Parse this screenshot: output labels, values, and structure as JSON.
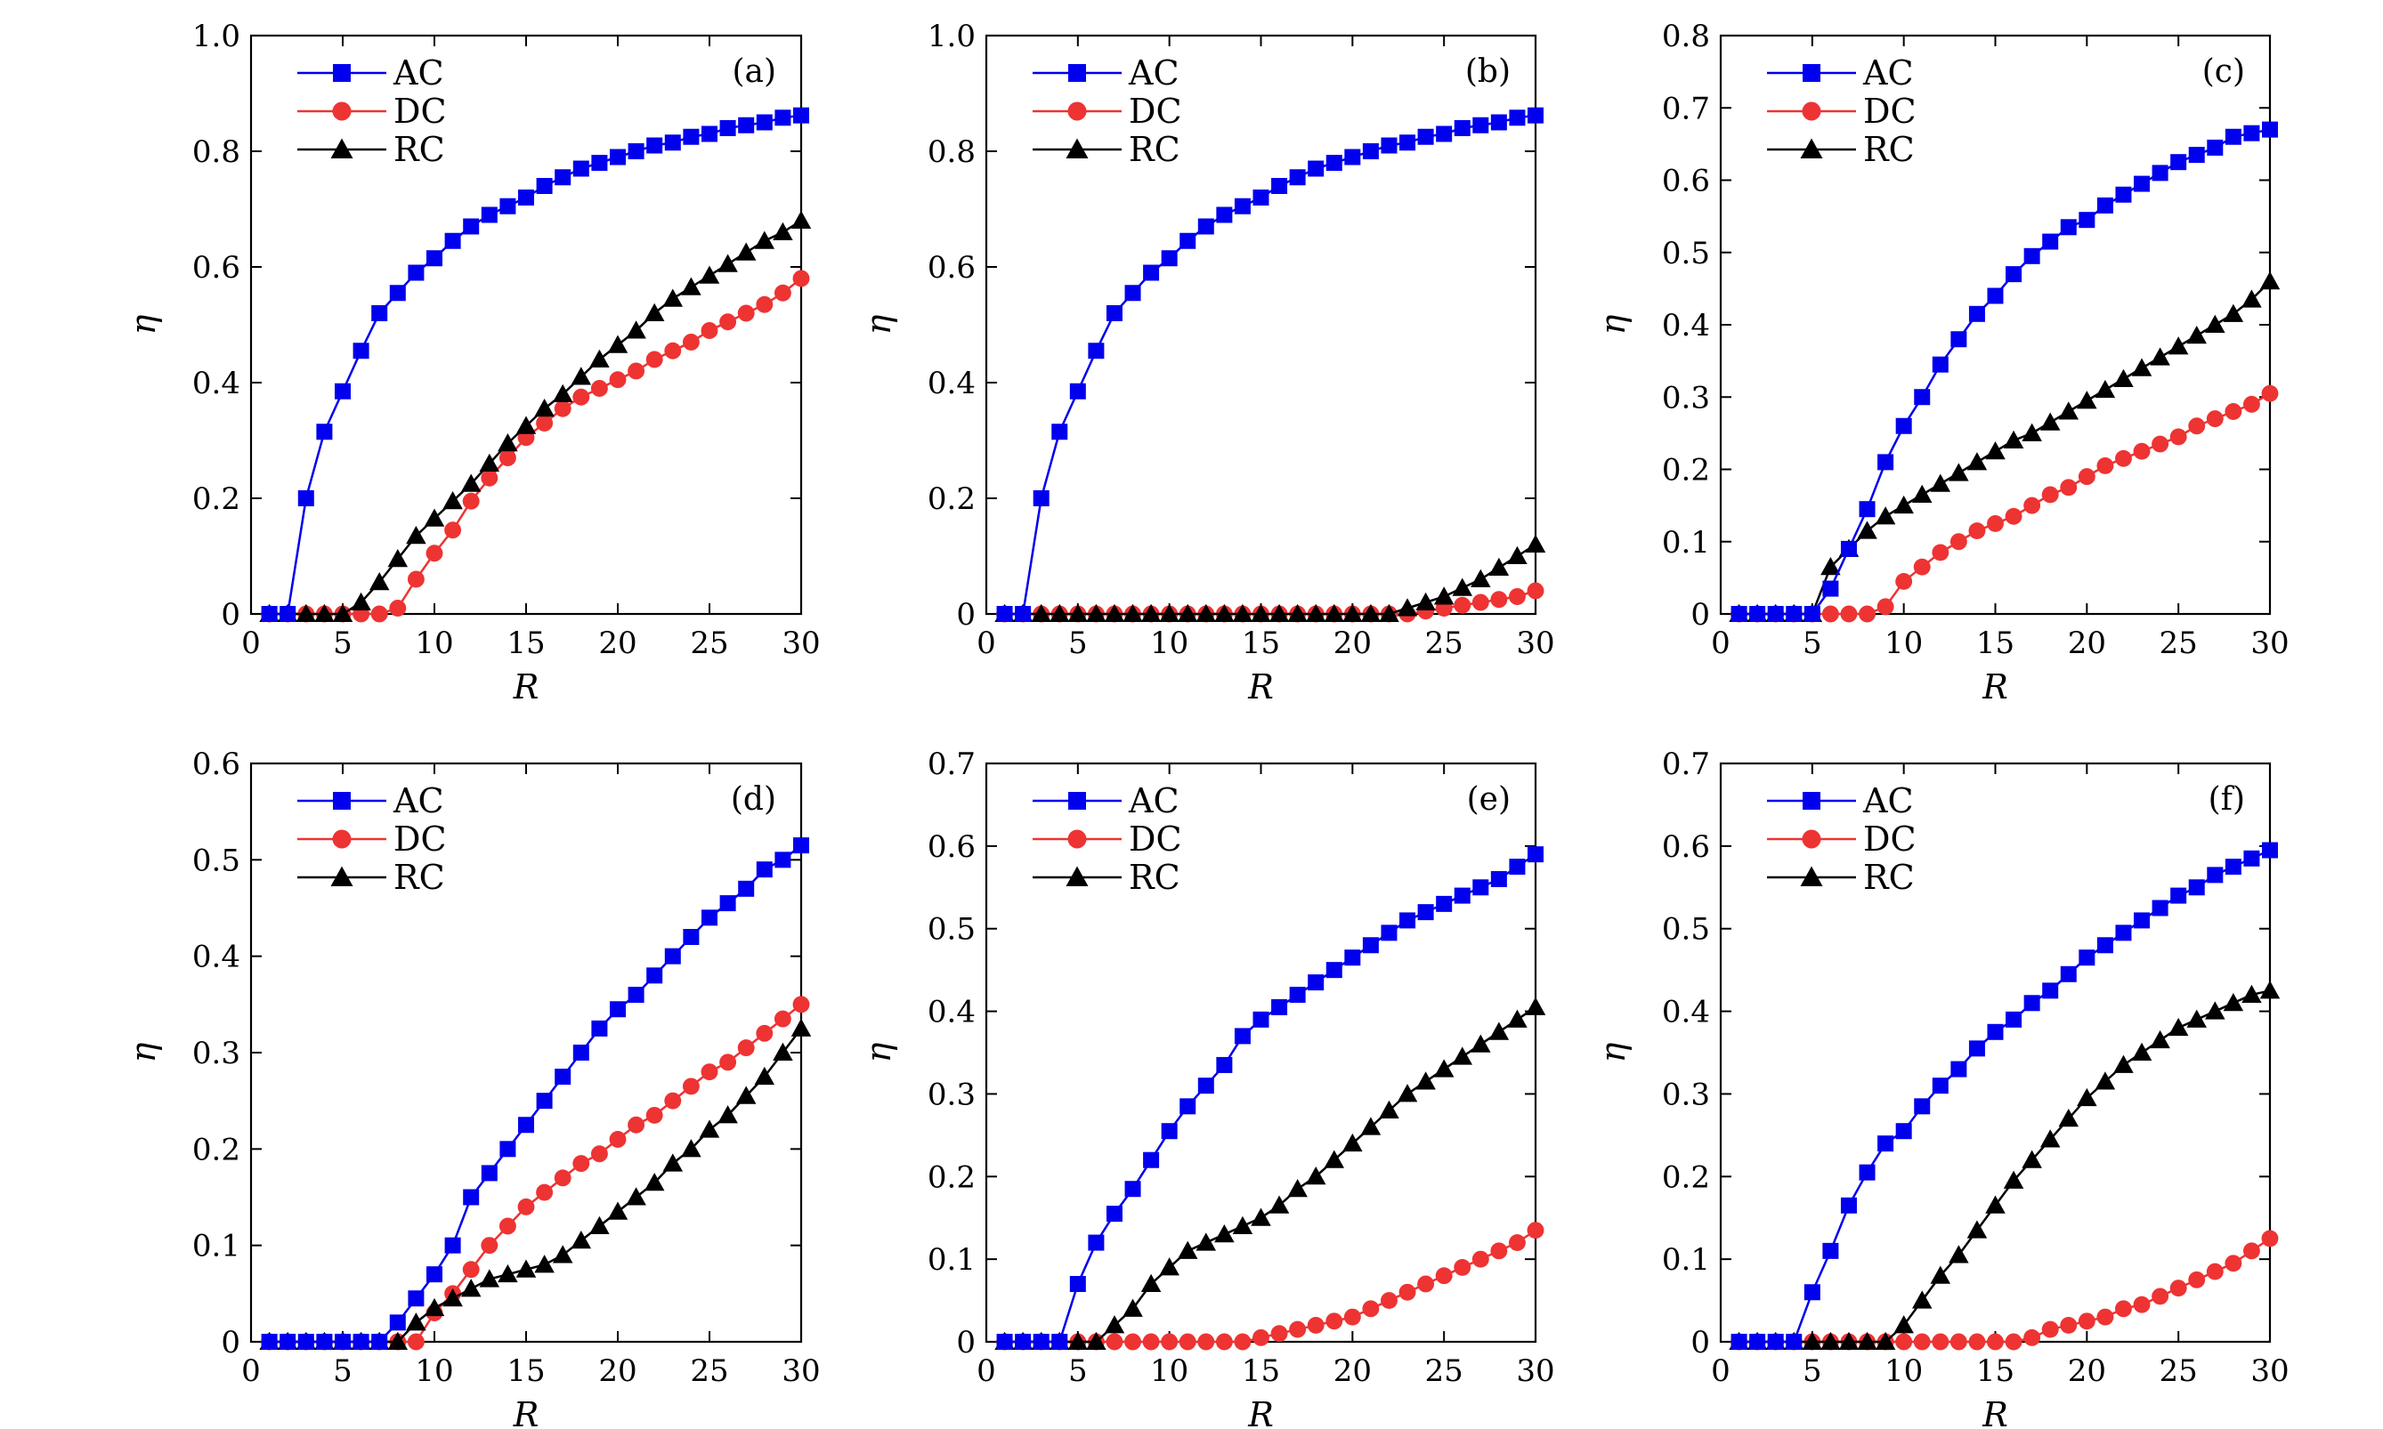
{
  "chart_data": [
    {
      "type": "line",
      "panel_label": "(a)",
      "xlabel": "R",
      "ylabel": "η",
      "xlim": [
        0,
        30
      ],
      "ylim": [
        0,
        1.0
      ],
      "xticks": [
        0,
        5,
        10,
        15,
        20,
        25,
        30
      ],
      "xtick_labels": [
        "0",
        "5",
        "10",
        "15",
        "20",
        "25",
        "30"
      ],
      "yticks": [
        0,
        0.2,
        0.4,
        0.6,
        0.8,
        1.0
      ],
      "ytick_labels": [
        "0",
        "0.2",
        "0.4",
        "0.6",
        "0.8",
        "1.0"
      ],
      "legend_position": "top-left",
      "x": [
        1,
        2,
        3,
        4,
        5,
        6,
        7,
        8,
        9,
        10,
        11,
        12,
        13,
        14,
        15,
        16,
        17,
        18,
        19,
        20,
        21,
        22,
        23,
        24,
        25,
        26,
        27,
        28,
        29,
        30
      ],
      "series": [
        {
          "name": "AC",
          "color": "#0000ee",
          "marker": "square",
          "values": [
            0,
            0,
            0.2,
            0.315,
            0.385,
            0.455,
            0.52,
            0.555,
            0.59,
            0.615,
            0.645,
            0.67,
            0.69,
            0.705,
            0.72,
            0.74,
            0.755,
            0.77,
            0.78,
            0.79,
            0.8,
            0.81,
            0.815,
            0.825,
            0.83,
            0.84,
            0.845,
            0.85,
            0.858,
            0.862
          ]
        },
        {
          "name": "DC",
          "color": "#ee3333",
          "marker": "circle",
          "values": [
            0,
            0,
            0,
            0,
            0,
            0,
            0,
            0.01,
            0.06,
            0.105,
            0.145,
            0.195,
            0.235,
            0.27,
            0.305,
            0.33,
            0.355,
            0.375,
            0.39,
            0.405,
            0.42,
            0.44,
            0.455,
            0.47,
            0.49,
            0.505,
            0.52,
            0.535,
            0.555,
            0.58
          ]
        },
        {
          "name": "RC",
          "color": "#000000",
          "marker": "triangle",
          "values": [
            0,
            0,
            0,
            0,
            0,
            0.02,
            0.055,
            0.095,
            0.135,
            0.165,
            0.195,
            0.225,
            0.26,
            0.295,
            0.325,
            0.355,
            0.38,
            0.41,
            0.44,
            0.465,
            0.49,
            0.52,
            0.545,
            0.565,
            0.585,
            0.605,
            0.625,
            0.645,
            0.66,
            0.68
          ]
        }
      ]
    },
    {
      "type": "line",
      "panel_label": "(b)",
      "xlabel": "R",
      "ylabel": "η",
      "xlim": [
        0,
        30
      ],
      "ylim": [
        0,
        1.0
      ],
      "xticks": [
        0,
        5,
        10,
        15,
        20,
        25,
        30
      ],
      "xtick_labels": [
        "0",
        "5",
        "10",
        "15",
        "20",
        "25",
        "30"
      ],
      "yticks": [
        0,
        0.2,
        0.4,
        0.6,
        0.8,
        1.0
      ],
      "ytick_labels": [
        "0",
        "0.2",
        "0.4",
        "0.6",
        "0.8",
        "1.0"
      ],
      "legend_position": "top-left",
      "x": [
        1,
        2,
        3,
        4,
        5,
        6,
        7,
        8,
        9,
        10,
        11,
        12,
        13,
        14,
        15,
        16,
        17,
        18,
        19,
        20,
        21,
        22,
        23,
        24,
        25,
        26,
        27,
        28,
        29,
        30
      ],
      "series": [
        {
          "name": "AC",
          "color": "#0000ee",
          "marker": "square",
          "values": [
            0,
            0,
            0.2,
            0.315,
            0.385,
            0.455,
            0.52,
            0.555,
            0.59,
            0.615,
            0.645,
            0.67,
            0.69,
            0.705,
            0.72,
            0.74,
            0.755,
            0.77,
            0.78,
            0.79,
            0.8,
            0.81,
            0.815,
            0.825,
            0.83,
            0.84,
            0.845,
            0.85,
            0.858,
            0.862
          ]
        },
        {
          "name": "DC",
          "color": "#ee3333",
          "marker": "circle",
          "values": [
            0,
            0,
            0,
            0,
            0,
            0,
            0,
            0,
            0,
            0,
            0,
            0,
            0,
            0,
            0,
            0,
            0,
            0,
            0,
            0,
            0,
            0,
            0,
            0.005,
            0.01,
            0.015,
            0.02,
            0.025,
            0.03,
            0.04
          ]
        },
        {
          "name": "RC",
          "color": "#000000",
          "marker": "triangle",
          "values": [
            0,
            0,
            0,
            0,
            0,
            0,
            0,
            0,
            0,
            0,
            0,
            0,
            0,
            0,
            0,
            0,
            0,
            0,
            0,
            0,
            0,
            0,
            0.01,
            0.02,
            0.03,
            0.045,
            0.06,
            0.08,
            0.1,
            0.12
          ]
        }
      ]
    },
    {
      "type": "line",
      "panel_label": "(c)",
      "xlabel": "R",
      "ylabel": "η",
      "xlim": [
        0,
        30
      ],
      "ylim": [
        0,
        0.8
      ],
      "xticks": [
        0,
        5,
        10,
        15,
        20,
        25,
        30
      ],
      "xtick_labels": [
        "0",
        "5",
        "10",
        "15",
        "20",
        "25",
        "30"
      ],
      "yticks": [
        0,
        0.1,
        0.2,
        0.3,
        0.4,
        0.5,
        0.6,
        0.7,
        0.8
      ],
      "ytick_labels": [
        "0",
        "0.1",
        "0.2",
        "0.3",
        "0.4",
        "0.5",
        "0.6",
        "0.7",
        "0.8"
      ],
      "legend_position": "top-left",
      "x": [
        1,
        2,
        3,
        4,
        5,
        6,
        7,
        8,
        9,
        10,
        11,
        12,
        13,
        14,
        15,
        16,
        17,
        18,
        19,
        20,
        21,
        22,
        23,
        24,
        25,
        26,
        27,
        28,
        29,
        30
      ],
      "series": [
        {
          "name": "AC",
          "color": "#0000ee",
          "marker": "square",
          "values": [
            0,
            0,
            0,
            0,
            0,
            0.035,
            0.09,
            0.145,
            0.21,
            0.26,
            0.3,
            0.345,
            0.38,
            0.415,
            0.44,
            0.47,
            0.495,
            0.515,
            0.535,
            0.545,
            0.565,
            0.58,
            0.595,
            0.61,
            0.625,
            0.635,
            0.645,
            0.66,
            0.665,
            0.67
          ]
        },
        {
          "name": "DC",
          "color": "#ee3333",
          "marker": "circle",
          "values": [
            0,
            0,
            0,
            0,
            0,
            0,
            0,
            0,
            0.01,
            0.045,
            0.065,
            0.085,
            0.1,
            0.115,
            0.125,
            0.135,
            0.15,
            0.165,
            0.175,
            0.19,
            0.205,
            0.215,
            0.225,
            0.235,
            0.245,
            0.26,
            0.27,
            0.28,
            0.29,
            0.305
          ]
        },
        {
          "name": "RC",
          "color": "#000000",
          "marker": "triangle",
          "values": [
            0,
            0,
            0,
            0,
            0,
            0.065,
            0.09,
            0.115,
            0.135,
            0.15,
            0.165,
            0.18,
            0.195,
            0.21,
            0.225,
            0.24,
            0.25,
            0.265,
            0.28,
            0.295,
            0.31,
            0.325,
            0.34,
            0.355,
            0.37,
            0.385,
            0.4,
            0.415,
            0.435,
            0.46
          ]
        }
      ]
    },
    {
      "type": "line",
      "panel_label": "(d)",
      "xlabel": "R",
      "ylabel": "η",
      "xlim": [
        0,
        30
      ],
      "ylim": [
        0,
        0.6
      ],
      "xticks": [
        0,
        5,
        10,
        15,
        20,
        25,
        30
      ],
      "xtick_labels": [
        "0",
        "5",
        "10",
        "15",
        "20",
        "25",
        "30"
      ],
      "yticks": [
        0,
        0.1,
        0.2,
        0.3,
        0.4,
        0.5,
        0.6
      ],
      "ytick_labels": [
        "0",
        "0.1",
        "0.2",
        "0.3",
        "0.4",
        "0.5",
        "0.6"
      ],
      "legend_position": "top-left",
      "x": [
        1,
        2,
        3,
        4,
        5,
        6,
        7,
        8,
        9,
        10,
        11,
        12,
        13,
        14,
        15,
        16,
        17,
        18,
        19,
        20,
        21,
        22,
        23,
        24,
        25,
        26,
        27,
        28,
        29,
        30
      ],
      "series": [
        {
          "name": "AC",
          "color": "#0000ee",
          "marker": "square",
          "values": [
            0,
            0,
            0,
            0,
            0,
            0,
            0,
            0.02,
            0.045,
            0.07,
            0.1,
            0.15,
            0.175,
            0.2,
            0.225,
            0.25,
            0.275,
            0.3,
            0.325,
            0.345,
            0.36,
            0.38,
            0.4,
            0.42,
            0.44,
            0.455,
            0.47,
            0.49,
            0.5,
            0.515
          ]
        },
        {
          "name": "DC",
          "color": "#ee3333",
          "marker": "circle",
          "values": [
            0,
            0,
            0,
            0,
            0,
            0,
            0,
            0,
            0,
            0.03,
            0.05,
            0.075,
            0.1,
            0.12,
            0.14,
            0.155,
            0.17,
            0.185,
            0.195,
            0.21,
            0.225,
            0.235,
            0.25,
            0.265,
            0.28,
            0.29,
            0.305,
            0.32,
            0.335,
            0.35
          ]
        },
        {
          "name": "RC",
          "color": "#000000",
          "marker": "triangle",
          "values": [
            0,
            0,
            0,
            0,
            0,
            0,
            0,
            0,
            0.02,
            0.035,
            0.045,
            0.055,
            0.065,
            0.07,
            0.075,
            0.08,
            0.09,
            0.105,
            0.12,
            0.135,
            0.15,
            0.165,
            0.185,
            0.2,
            0.22,
            0.235,
            0.255,
            0.275,
            0.3,
            0.325
          ]
        }
      ]
    },
    {
      "type": "line",
      "panel_label": "(e)",
      "xlabel": "R",
      "ylabel": "η",
      "xlim": [
        0,
        30
      ],
      "ylim": [
        0,
        0.7
      ],
      "xticks": [
        0,
        5,
        10,
        15,
        20,
        25,
        30
      ],
      "xtick_labels": [
        "0",
        "5",
        "10",
        "15",
        "20",
        "25",
        "30"
      ],
      "yticks": [
        0,
        0.1,
        0.2,
        0.3,
        0.4,
        0.5,
        0.6,
        0.7
      ],
      "ytick_labels": [
        "0",
        "0.1",
        "0.2",
        "0.3",
        "0.4",
        "0.5",
        "0.6",
        "0.7"
      ],
      "legend_position": "top-left",
      "x": [
        1,
        2,
        3,
        4,
        5,
        6,
        7,
        8,
        9,
        10,
        11,
        12,
        13,
        14,
        15,
        16,
        17,
        18,
        19,
        20,
        21,
        22,
        23,
        24,
        25,
        26,
        27,
        28,
        29,
        30
      ],
      "series": [
        {
          "name": "AC",
          "color": "#0000ee",
          "marker": "square",
          "values": [
            0,
            0,
            0,
            0,
            0.07,
            0.12,
            0.155,
            0.185,
            0.22,
            0.255,
            0.285,
            0.31,
            0.335,
            0.37,
            0.39,
            0.405,
            0.42,
            0.435,
            0.45,
            0.465,
            0.48,
            0.495,
            0.51,
            0.52,
            0.53,
            0.54,
            0.55,
            0.56,
            0.575,
            0.59
          ]
        },
        {
          "name": "DC",
          "color": "#ee3333",
          "marker": "circle",
          "values": [
            0,
            0,
            0,
            0,
            0,
            0,
            0,
            0,
            0,
            0,
            0,
            0,
            0,
            0,
            0.005,
            0.01,
            0.015,
            0.02,
            0.025,
            0.03,
            0.04,
            0.05,
            0.06,
            0.07,
            0.08,
            0.09,
            0.1,
            0.11,
            0.12,
            0.135
          ]
        },
        {
          "name": "RC",
          "color": "#000000",
          "marker": "triangle",
          "values": [
            0,
            0,
            0,
            0,
            0,
            0,
            0.02,
            0.04,
            0.07,
            0.09,
            0.11,
            0.12,
            0.13,
            0.14,
            0.15,
            0.165,
            0.185,
            0.2,
            0.22,
            0.24,
            0.26,
            0.28,
            0.3,
            0.315,
            0.33,
            0.345,
            0.36,
            0.375,
            0.39,
            0.405
          ]
        }
      ]
    },
    {
      "type": "line",
      "panel_label": "(f)",
      "xlabel": "R",
      "ylabel": "η",
      "xlim": [
        0,
        30
      ],
      "ylim": [
        0,
        0.7
      ],
      "xticks": [
        0,
        5,
        10,
        15,
        20,
        25,
        30
      ],
      "xtick_labels": [
        "0",
        "5",
        "10",
        "15",
        "20",
        "25",
        "30"
      ],
      "yticks": [
        0,
        0.1,
        0.2,
        0.3,
        0.4,
        0.5,
        0.6,
        0.7
      ],
      "ytick_labels": [
        "0",
        "0.1",
        "0.2",
        "0.3",
        "0.4",
        "0.5",
        "0.6",
        "0.7"
      ],
      "legend_position": "top-left",
      "x": [
        1,
        2,
        3,
        4,
        5,
        6,
        7,
        8,
        9,
        10,
        11,
        12,
        13,
        14,
        15,
        16,
        17,
        18,
        19,
        20,
        21,
        22,
        23,
        24,
        25,
        26,
        27,
        28,
        29,
        30
      ],
      "series": [
        {
          "name": "AC",
          "color": "#0000ee",
          "marker": "square",
          "values": [
            0,
            0,
            0,
            0,
            0.06,
            0.11,
            0.165,
            0.205,
            0.24,
            0.255,
            0.285,
            0.31,
            0.33,
            0.355,
            0.375,
            0.39,
            0.41,
            0.425,
            0.445,
            0.465,
            0.48,
            0.495,
            0.51,
            0.525,
            0.54,
            0.55,
            0.565,
            0.575,
            0.585,
            0.595
          ]
        },
        {
          "name": "DC",
          "color": "#ee3333",
          "marker": "circle",
          "values": [
            0,
            0,
            0,
            0,
            0,
            0,
            0,
            0,
            0,
            0,
            0,
            0,
            0,
            0,
            0,
            0,
            0.005,
            0.015,
            0.02,
            0.025,
            0.03,
            0.04,
            0.045,
            0.055,
            0.065,
            0.075,
            0.085,
            0.095,
            0.11,
            0.125
          ]
        },
        {
          "name": "RC",
          "color": "#000000",
          "marker": "triangle",
          "values": [
            0,
            0,
            0,
            0,
            0,
            0,
            0,
            0,
            0,
            0.02,
            0.05,
            0.08,
            0.105,
            0.135,
            0.165,
            0.195,
            0.22,
            0.245,
            0.27,
            0.295,
            0.315,
            0.335,
            0.35,
            0.365,
            0.38,
            0.39,
            0.4,
            0.41,
            0.42,
            0.425
          ]
        }
      ]
    }
  ]
}
